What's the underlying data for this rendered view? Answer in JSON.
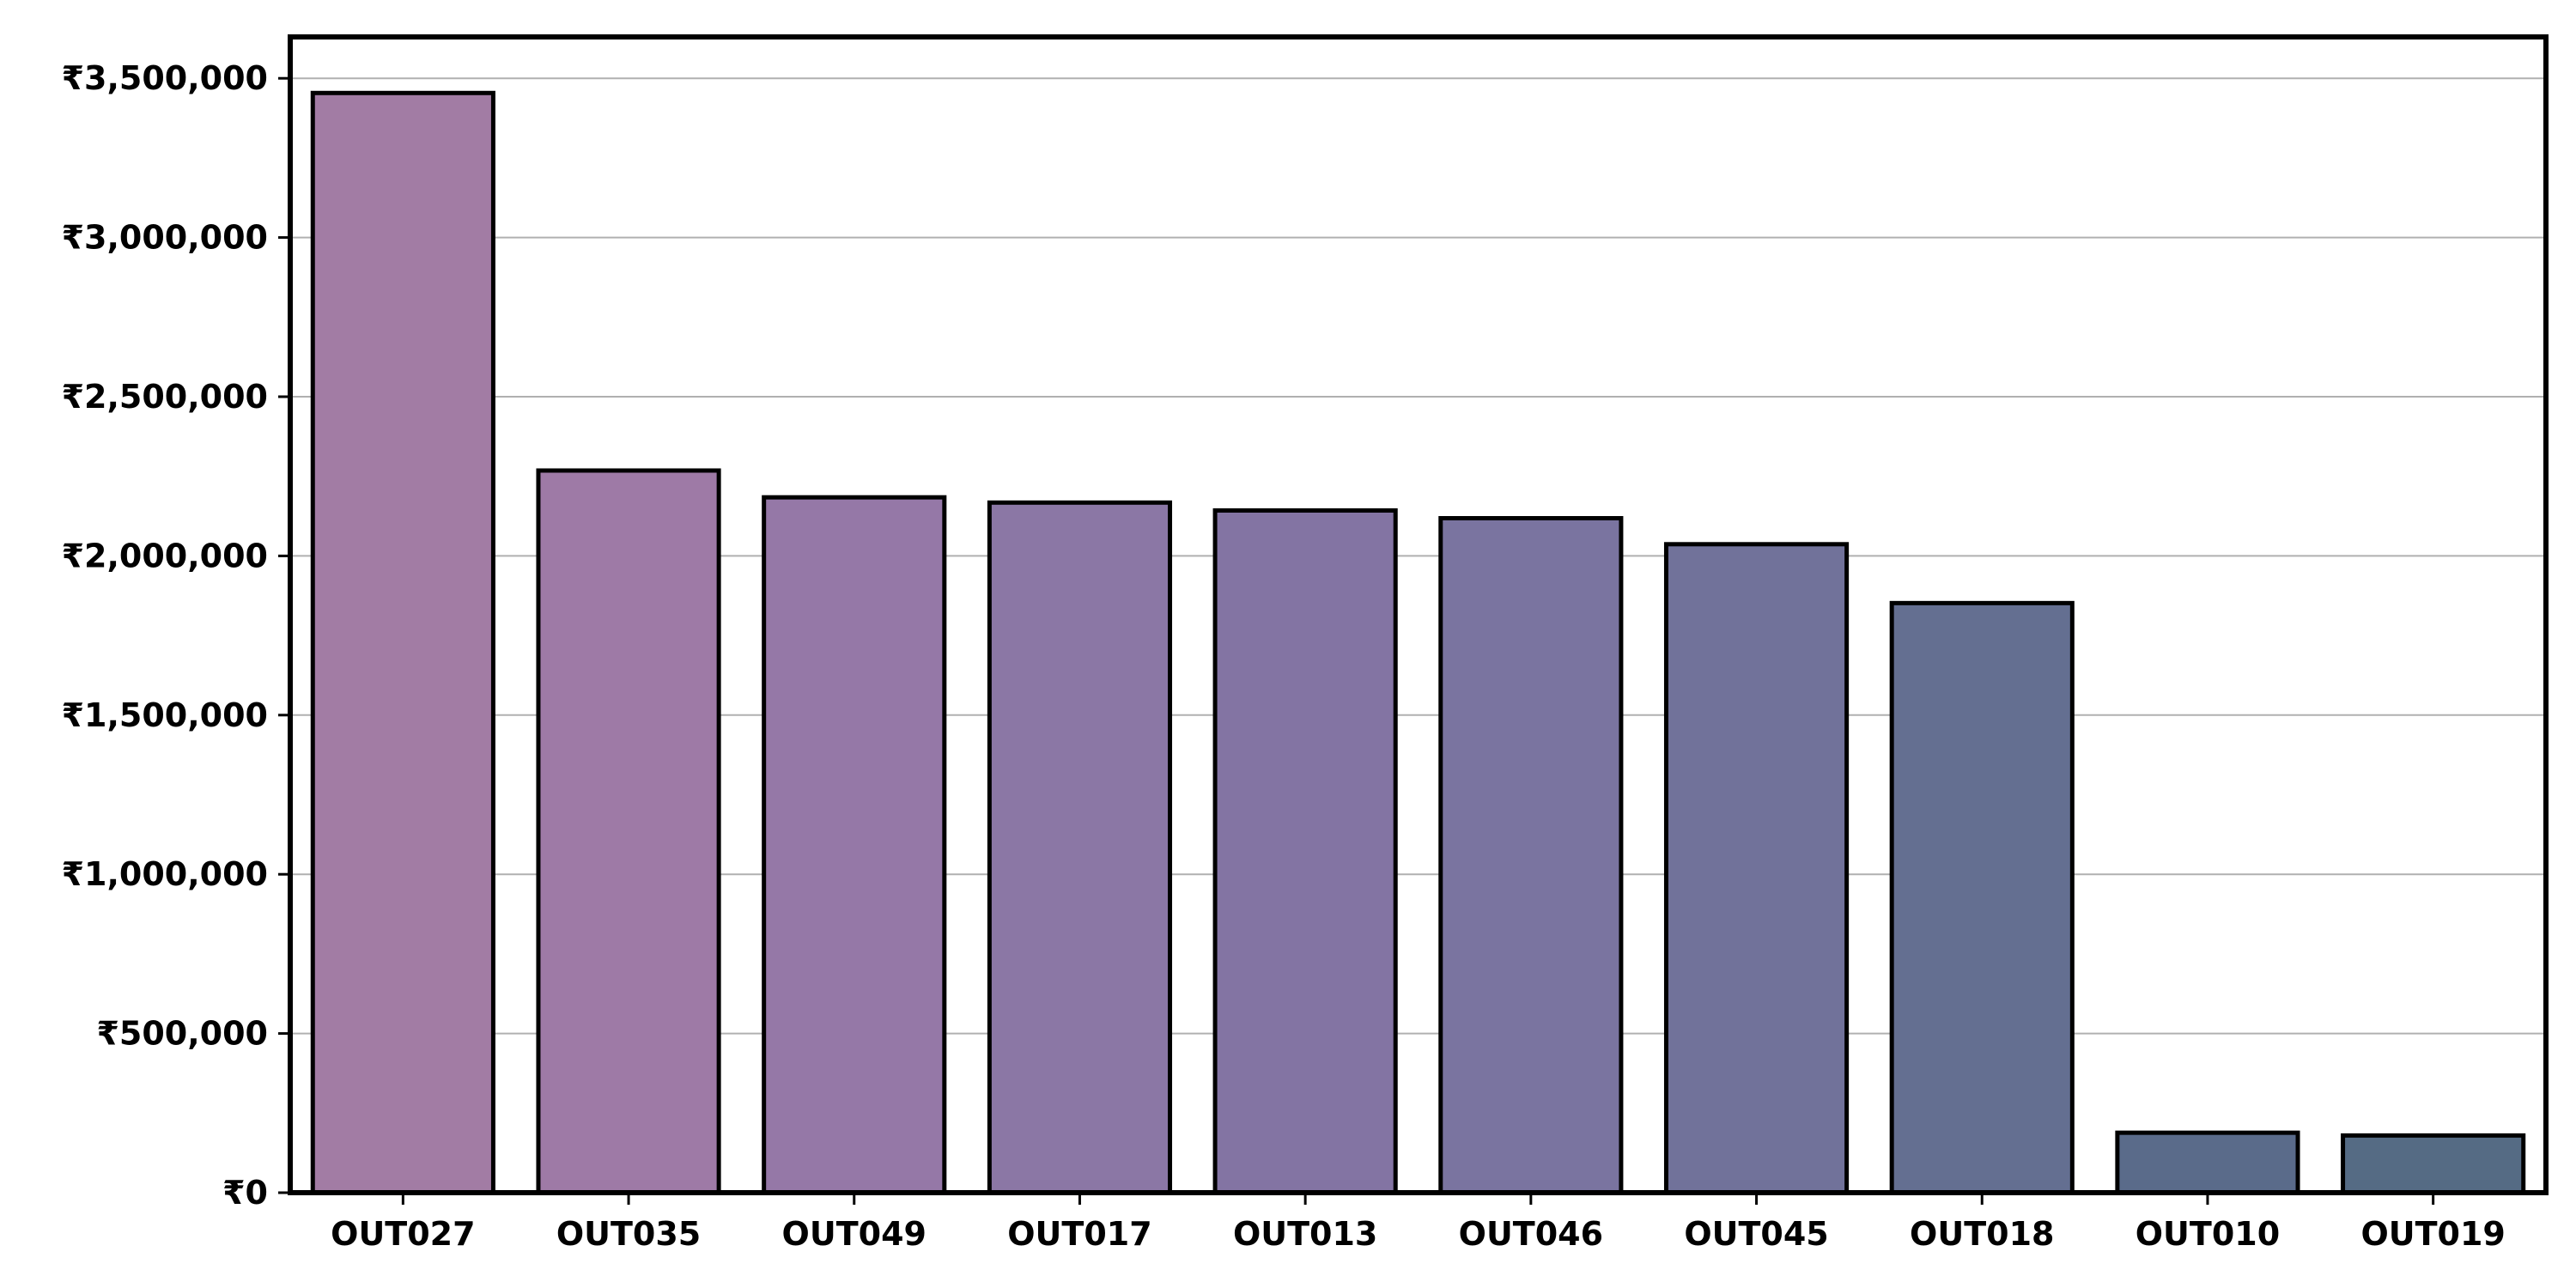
{
  "chart_data": {
    "type": "bar",
    "title": "",
    "xlabel": "",
    "ylabel": "",
    "categories": [
      "OUT027",
      "OUT035",
      "OUT049",
      "OUT017",
      "OUT013",
      "OUT046",
      "OUT045",
      "OUT018",
      "OUT010",
      "OUT019"
    ],
    "values": [
      3453926,
      2268123,
      2183970,
      2167465,
      2142664,
      2118395,
      2036725,
      1851823,
      188340,
      179694
    ],
    "ylim": [
      0,
      3630000
    ],
    "yticks": [
      0,
      500000,
      1000000,
      1500000,
      2000000,
      2500000,
      3000000,
      3500000
    ],
    "ytick_labels": [
      "₹0",
      "₹500,000",
      "₹1,000,000",
      "₹1,500,000",
      "₹2,000,000",
      "₹2,500,000",
      "₹3,000,000",
      "₹3,500,000"
    ],
    "grid": "horizontal",
    "legend": "none",
    "bar_colors": [
      "#a27ca4",
      "#9e7aa6",
      "#9578a7",
      "#8b77a5",
      "#8374a3",
      "#7a74a0",
      "#71729a",
      "#646f91",
      "#5a6b8a",
      "#556b84"
    ],
    "edge_color": "#000000"
  }
}
